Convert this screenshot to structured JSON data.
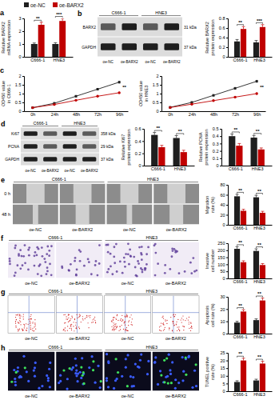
{
  "chart_data": [
    {
      "type": "bar",
      "label": "a",
      "legend": "top-left",
      "y_label": [
        "Relative BARX2",
        "mRNA expression"
      ],
      "categories": [
        "C666-1",
        "HNE3"
      ],
      "series": [
        {
          "name": "oe-NC",
          "color": "#1f1f1f",
          "values": [
            1.0,
            1.0
          ],
          "errors": [
            0.08,
            0.1
          ]
        },
        {
          "name": "oe-BARX2",
          "color": "#c00000",
          "values": [
            2.5,
            2.8
          ],
          "errors": [
            0.2,
            0.2
          ]
        }
      ],
      "ylim": [
        0,
        3
      ],
      "yticks": [
        0,
        1,
        2,
        3
      ],
      "significance": [
        "**",
        "***"
      ]
    },
    {
      "type": "bar",
      "y_label": [
        "Relative BARX2",
        "protein expression"
      ],
      "categories": [
        "C666-1",
        "HNE3"
      ],
      "series": [
        {
          "color": "#1f1f1f",
          "values": [
            0.32,
            0.3
          ],
          "errors": [
            0.04,
            0.04
          ]
        },
        {
          "color": "#c00000",
          "values": [
            0.58,
            0.62
          ],
          "errors": [
            0.05,
            0.05
          ]
        }
      ],
      "ylim": [
        0,
        0.8
      ],
      "yticks": [
        0,
        0.2,
        0.4,
        0.6,
        0.8
      ],
      "significance": [
        "**",
        "***"
      ]
    },
    {
      "type": "line",
      "label": "c",
      "y_label": [
        "OD450 value",
        "in C666-1"
      ],
      "categories": [
        "0h",
        "24h",
        "48h",
        "72h",
        "96h"
      ],
      "series": [
        {
          "color": "#1f1f1f",
          "marker": "square",
          "values": [
            0.2,
            0.45,
            0.85,
            1.25,
            1.65
          ],
          "errors": [
            0.03,
            0.05,
            0.06,
            0.07,
            0.08
          ]
        },
        {
          "color": "#c00000",
          "marker": "circle",
          "values": [
            0.2,
            0.38,
            0.62,
            0.85,
            1.05
          ],
          "errors": [
            0.03,
            0.04,
            0.05,
            0.06,
            0.07
          ]
        }
      ],
      "ylim": [
        0,
        2
      ],
      "yticks": [
        0,
        0.5,
        1,
        1.5,
        2
      ],
      "significance": "**"
    },
    {
      "type": "line",
      "y_label": [
        "OD450 value",
        "in HNE3"
      ],
      "categories": [
        "0h",
        "24h",
        "48h",
        "72h",
        "96h"
      ],
      "series": [
        {
          "color": "#1f1f1f",
          "marker": "square",
          "values": [
            0.22,
            0.5,
            0.9,
            1.3,
            1.7
          ],
          "errors": [
            0.03,
            0.05,
            0.06,
            0.07,
            0.08
          ]
        },
        {
          "color": "#c00000",
          "marker": "circle",
          "values": [
            0.21,
            0.4,
            0.6,
            0.8,
            1.0
          ],
          "errors": [
            0.03,
            0.04,
            0.05,
            0.06,
            0.07
          ]
        }
      ],
      "ylim": [
        0,
        2
      ],
      "yticks": [
        0,
        0.5,
        1,
        1.5,
        2
      ],
      "significance": "**"
    },
    {
      "type": "bar",
      "y_label": [
        "Relative Ki67",
        "protein expression"
      ],
      "categories": [
        "C666-1",
        "HNE3"
      ],
      "series": [
        {
          "color": "#1f1f1f",
          "values": [
            0.5,
            0.45
          ],
          "errors": [
            0.04,
            0.04
          ]
        },
        {
          "color": "#c00000",
          "values": [
            0.3,
            0.22
          ],
          "errors": [
            0.03,
            0.03
          ]
        }
      ],
      "ylim": [
        0,
        0.6
      ],
      "yticks": [
        0,
        0.2,
        0.4,
        0.6
      ],
      "significance": [
        "**",
        "**"
      ]
    },
    {
      "type": "bar",
      "y_label": [
        "Relative PCNA",
        "protein expression"
      ],
      "categories": [
        "C666-1",
        "HNE3"
      ],
      "series": [
        {
          "color": "#1f1f1f",
          "values": [
            0.4,
            0.38
          ],
          "errors": [
            0.03,
            0.03
          ]
        },
        {
          "color": "#c00000",
          "values": [
            0.27,
            0.22
          ],
          "errors": [
            0.03,
            0.02
          ]
        }
      ],
      "ylim": [
        0,
        0.5
      ],
      "yticks": [
        0,
        0.1,
        0.2,
        0.3,
        0.4,
        0.5
      ],
      "significance": [
        "**",
        "**"
      ]
    },
    {
      "type": "bar",
      "y_label": [
        "Migration",
        "rate (%)"
      ],
      "categories": [
        "C666-1",
        "HNE3"
      ],
      "series": [
        {
          "color": "#1f1f1f",
          "values": [
            57,
            55
          ],
          "errors": [
            4,
            4
          ]
        },
        {
          "color": "#c00000",
          "values": [
            28,
            24
          ],
          "errors": [
            3,
            3
          ]
        }
      ],
      "ylim": [
        0,
        80
      ],
      "yticks": [
        0,
        20,
        40,
        60,
        80
      ],
      "significance": [
        "**",
        "**"
      ]
    },
    {
      "type": "bar",
      "y_label": [
        "Invasive",
        "cell number"
      ],
      "categories": [
        "C666-1",
        "HNE3"
      ],
      "series": [
        {
          "color": "#1f1f1f",
          "values": [
            210,
            195
          ],
          "errors": [
            15,
            15
          ]
        },
        {
          "color": "#c00000",
          "values": [
            115,
            95
          ],
          "errors": [
            10,
            10
          ]
        }
      ],
      "ylim": [
        0,
        250
      ],
      "yticks": [
        0,
        50,
        100,
        150,
        200,
        250
      ],
      "significance": [
        "**",
        "**"
      ]
    },
    {
      "type": "bar",
      "y_label": [
        "Apoptosis",
        "cell rate (%)"
      ],
      "categories": [
        "C666-1",
        "HNE3"
      ],
      "series": [
        {
          "color": "#1f1f1f",
          "values": [
            9,
            11
          ],
          "errors": [
            1,
            1
          ]
        },
        {
          "color": "#c00000",
          "values": [
            18,
            27
          ],
          "errors": [
            1.5,
            2
          ]
        }
      ],
      "ylim": [
        0,
        30
      ],
      "yticks": [
        0,
        10,
        20,
        30
      ],
      "significance": [
        "**",
        "**"
      ]
    },
    {
      "type": "bar",
      "y_label": [
        "TUNEL positive",
        "rate (%)"
      ],
      "categories": [
        "C666-1",
        "HNE3"
      ],
      "series": [
        {
          "color": "#1f1f1f",
          "values": [
            6,
            7
          ],
          "errors": [
            0.8,
            0.8
          ]
        },
        {
          "color": "#c00000",
          "values": [
            20,
            18
          ],
          "errors": [
            1.5,
            1.5
          ]
        }
      ],
      "ylim": [
        0,
        25
      ],
      "yticks": [
        0,
        5,
        10,
        15,
        20,
        25
      ],
      "significance": [
        "**",
        "**"
      ]
    }
  ],
  "figure_panels": [
    {
      "label": "b",
      "kind": "blot",
      "groups": [
        "C666-1",
        "HNE3"
      ],
      "lanes": [
        "oe-NC",
        "oe-BARX2",
        "oe-NC",
        "oe-BARX2"
      ],
      "bands": [
        {
          "name": "BARX2",
          "size": "31 kDa"
        },
        {
          "name": "GAPDH",
          "size": "37 kDa"
        }
      ]
    },
    {
      "label": "d",
      "kind": "blot",
      "groups": [
        "C666-1",
        "HNE3"
      ],
      "lanes": [
        "oe-NC",
        "oe-BARX2",
        "oe-NC",
        "oe-BARX2"
      ],
      "bands": [
        {
          "name": "Ki67",
          "size": "358 kDa"
        },
        {
          "name": "PCNA",
          "size": "29 kDa"
        },
        {
          "name": "GAPDH",
          "size": "37 kDa"
        }
      ]
    },
    {
      "label": "e",
      "kind": "wound",
      "groups": [
        "C666-1",
        "HNE3"
      ],
      "lanes": [
        "oe-NC",
        "oe-BARX2",
        "oe-NC",
        "oe-BARX2"
      ],
      "rows": [
        "0 h",
        "48 h"
      ]
    },
    {
      "label": "f",
      "kind": "transwell",
      "groups": [
        "C666-1",
        "HNE3"
      ],
      "lanes": [
        "oe-NC",
        "oe-BARX2",
        "oe-NC",
        "oe-BARX2"
      ]
    },
    {
      "label": "g",
      "kind": "flow",
      "groups": [
        "C666-1",
        "HNE3"
      ],
      "lanes": [
        "oe-NC",
        "oe-BARX2",
        "oe-NC",
        "oe-BARX2"
      ]
    },
    {
      "label": "h",
      "kind": "tunel",
      "groups": [
        "C666-1",
        "HNE3"
      ],
      "lanes": [
        "oe-NC",
        "oe-BARX2",
        "oe-NC",
        "oe-BARX2"
      ]
    }
  ]
}
